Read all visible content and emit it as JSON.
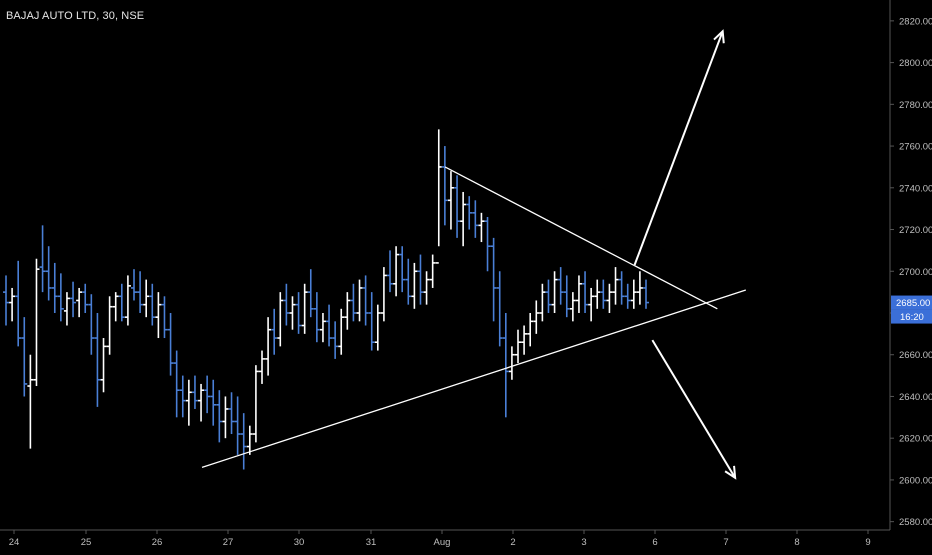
{
  "header": {
    "symbol": "BAJAJ AUTO LTD",
    "interval": "30",
    "exchange": "NSE",
    "title": "BAJAJ AUTO LTD, 30, NSE"
  },
  "colors": {
    "background": "#000000",
    "up_bar": "#ffffff",
    "down_bar": "#4a7fd6",
    "trendline": "#ffffff",
    "price_badge": "#3b6fd8",
    "axis_text": "#bfbfbf",
    "axis_line": "#555555"
  },
  "chart_data": {
    "type": "ohlc",
    "title": "BAJAJ AUTO LTD, 30, NSE",
    "ylim": [
      2576,
      2830
    ],
    "y_ticks": [
      "2580.00",
      "2600.00",
      "2620.00",
      "2640.00",
      "2660.00",
      "2680.00",
      "2700.00",
      "2720.00",
      "2740.00",
      "2760.00",
      "2780.00",
      "2800.00",
      "2820.00"
    ],
    "x_ticks": [
      "24",
      "25",
      "26",
      "27",
      "30",
      "31",
      "Aug",
      "2",
      "3",
      "6",
      "7",
      "8",
      "9"
    ],
    "last_price": "2685.00",
    "countdown": "16:20",
    "grid": false,
    "bars": [
      [
        2690,
        2698,
        2674,
        2685
      ],
      [
        2685,
        2692,
        2676,
        2688
      ],
      [
        2688,
        2705,
        2664,
        2668
      ],
      [
        2668,
        2678,
        2640,
        2646
      ],
      [
        2645,
        2660,
        2615,
        2648
      ],
      [
        2648,
        2706,
        2645,
        2701
      ],
      [
        2702,
        2722,
        2690,
        2700
      ],
      [
        2700,
        2712,
        2686,
        2692
      ],
      [
        2692,
        2704,
        2680,
        2688
      ],
      [
        2688,
        2699,
        2676,
        2682
      ],
      [
        2681,
        2690,
        2674,
        2687
      ],
      [
        2687,
        2695,
        2678,
        2685
      ],
      [
        2686,
        2692,
        2678,
        2690
      ],
      [
        2690,
        2694,
        2680,
        2684
      ],
      [
        2684,
        2689,
        2660,
        2668
      ],
      [
        2668,
        2680,
        2635,
        2648
      ],
      [
        2648,
        2668,
        2642,
        2664
      ],
      [
        2664,
        2688,
        2660,
        2683
      ],
      [
        2683,
        2690,
        2676,
        2688
      ],
      [
        2688,
        2694,
        2676,
        2678
      ],
      [
        2678,
        2698,
        2674,
        2693
      ],
      [
        2692,
        2701,
        2686,
        2690
      ],
      [
        2690,
        2700,
        2680,
        2684
      ],
      [
        2684,
        2696,
        2678,
        2688
      ],
      [
        2688,
        2694,
        2674,
        2678
      ],
      [
        2678,
        2690,
        2668,
        2684
      ],
      [
        2684,
        2688,
        2668,
        2672
      ],
      [
        2672,
        2680,
        2650,
        2656
      ],
      [
        2656,
        2662,
        2630,
        2643
      ],
      [
        2643,
        2650,
        2630,
        2638
      ],
      [
        2638,
        2648,
        2626,
        2642
      ],
      [
        2642,
        2650,
        2634,
        2638
      ],
      [
        2638,
        2646,
        2628,
        2643
      ],
      [
        2643,
        2650,
        2632,
        2640
      ],
      [
        2640,
        2648,
        2626,
        2636
      ],
      [
        2636,
        2643,
        2618,
        2628
      ],
      [
        2628,
        2640,
        2620,
        2634
      ],
      [
        2634,
        2642,
        2622,
        2628
      ],
      [
        2628,
        2640,
        2612,
        2622
      ],
      [
        2622,
        2632,
        2605,
        2616
      ],
      [
        2616,
        2626,
        2612,
        2622
      ],
      [
        2622,
        2655,
        2618,
        2652
      ],
      [
        2652,
        2662,
        2646,
        2658
      ],
      [
        2658,
        2678,
        2650,
        2672
      ],
      [
        2672,
        2682,
        2660,
        2668
      ],
      [
        2668,
        2690,
        2664,
        2686
      ],
      [
        2686,
        2694,
        2674,
        2680
      ],
      [
        2680,
        2688,
        2672,
        2684
      ],
      [
        2684,
        2690,
        2670,
        2674
      ],
      [
        2674,
        2694,
        2670,
        2690
      ],
      [
        2690,
        2701,
        2678,
        2682
      ],
      [
        2682,
        2690,
        2666,
        2672
      ],
      [
        2672,
        2680,
        2666,
        2676
      ],
      [
        2676,
        2684,
        2664,
        2668
      ],
      [
        2668,
        2676,
        2658,
        2664
      ],
      [
        2664,
        2682,
        2660,
        2678
      ],
      [
        2678,
        2690,
        2672,
        2686
      ],
      [
        2686,
        2694,
        2676,
        2680
      ],
      [
        2680,
        2696,
        2676,
        2692
      ],
      [
        2692,
        2698,
        2674,
        2680
      ],
      [
        2680,
        2690,
        2662,
        2666
      ],
      [
        2666,
        2684,
        2662,
        2680
      ],
      [
        2680,
        2702,
        2676,
        2698
      ],
      [
        2698,
        2710,
        2690,
        2694
      ],
      [
        2694,
        2712,
        2688,
        2708
      ],
      [
        2708,
        2712,
        2690,
        2696
      ],
      [
        2696,
        2706,
        2684,
        2688
      ],
      [
        2688,
        2704,
        2682,
        2700
      ],
      [
        2700,
        2708,
        2684,
        2690
      ],
      [
        2690,
        2700,
        2684,
        2696
      ],
      [
        2696,
        2708,
        2692,
        2704
      ],
      [
        2704,
        2768,
        2712,
        2750
      ],
      [
        2750,
        2760,
        2722,
        2734
      ],
      [
        2734,
        2748,
        2720,
        2740
      ],
      [
        2740,
        2746,
        2716,
        2724
      ],
      [
        2724,
        2738,
        2712,
        2732
      ],
      [
        2732,
        2736,
        2720,
        2728
      ],
      [
        2728,
        2734,
        2716,
        2722
      ],
      [
        2722,
        2728,
        2714,
        2724
      ],
      [
        2724,
        2726,
        2700,
        2712
      ],
      [
        2712,
        2716,
        2676,
        2692
      ],
      [
        2692,
        2700,
        2664,
        2668
      ],
      [
        2668,
        2680,
        2630,
        2652
      ],
      [
        2652,
        2664,
        2648,
        2660
      ],
      [
        2660,
        2672,
        2656,
        2666
      ],
      [
        2666,
        2674,
        2660,
        2670
      ],
      [
        2670,
        2680,
        2664,
        2676
      ],
      [
        2676,
        2686,
        2670,
        2680
      ],
      [
        2680,
        2694,
        2676,
        2690
      ],
      [
        2690,
        2696,
        2680,
        2684
      ],
      [
        2684,
        2700,
        2680,
        2696
      ],
      [
        2696,
        2702,
        2684,
        2690
      ],
      [
        2690,
        2698,
        2678,
        2682
      ],
      [
        2682,
        2690,
        2676,
        2686
      ],
      [
        2686,
        2698,
        2680,
        2694
      ],
      [
        2694,
        2700,
        2680,
        2684
      ],
      [
        2684,
        2692,
        2676,
        2688
      ],
      [
        2688,
        2696,
        2682,
        2690
      ],
      [
        2690,
        2696,
        2682,
        2686
      ],
      [
        2686,
        2694,
        2680,
        2690
      ],
      [
        2690,
        2702,
        2684,
        2696
      ],
      [
        2696,
        2700,
        2684,
        2688
      ],
      [
        2688,
        2694,
        2682,
        2686
      ],
      [
        2686,
        2696,
        2682,
        2690
      ],
      [
        2690,
        2700,
        2684,
        2692
      ],
      [
        2692,
        2696,
        2682,
        2685
      ]
    ],
    "annotations": {
      "upper_trendline": [
        [
          0.5,
          2750
        ],
        [
          0.806,
          2682
        ]
      ],
      "lower_trendline": [
        [
          0.227,
          2606
        ],
        [
          0.838,
          2691
        ]
      ],
      "arrow_up": [
        [
          0.713,
          2703
        ],
        [
          0.812,
          2815
        ]
      ],
      "arrow_down": [
        [
          0.733,
          2667
        ],
        [
          0.826,
          2601
        ]
      ]
    }
  }
}
